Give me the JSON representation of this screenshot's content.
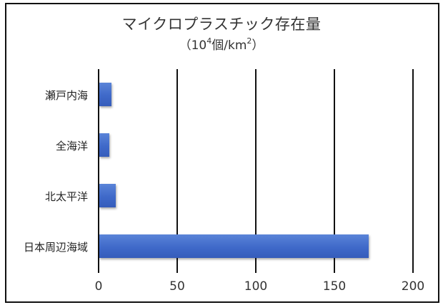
{
  "chart_data": {
    "type": "bar",
    "orientation": "horizontal",
    "title": "マイクロプラスチック存在量",
    "subtitle_prefix": "（10",
    "subtitle_sup1": "4",
    "subtitle_mid": "個/km",
    "subtitle_sup2": "2",
    "subtitle_suffix": "）",
    "units": "10^4個/km^2",
    "categories": [
      "瀬戸内海",
      "全海洋",
      "北太平洋",
      "日本周辺海域"
    ],
    "values": [
      8,
      7,
      11,
      172
    ],
    "xlabel": "",
    "ylabel": "",
    "xlim": [
      0,
      200
    ],
    "xticks": [
      "0",
      "50",
      "100",
      "150",
      "200"
    ],
    "grid": "vertical",
    "legend": null,
    "bar_color": "#3f69c9"
  }
}
